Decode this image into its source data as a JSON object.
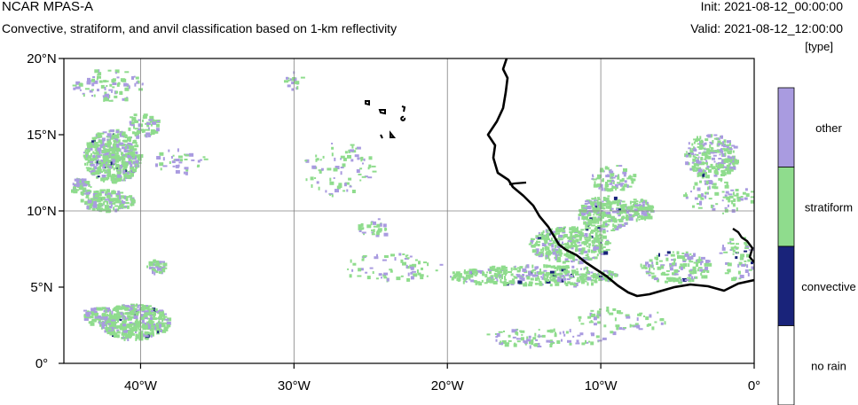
{
  "header": {
    "title": "NCAR MPAS-A",
    "subtitle": "Convective, stratiform, and anvil classification based on 1-km reflectivity",
    "init": "Init: 2021-08-12_00:00:00",
    "valid": "Valid: 2021-08-12_12:00:00",
    "units": "[type]"
  },
  "map": {
    "lon_range": [
      -45,
      0
    ],
    "lat_range": [
      0,
      20
    ],
    "lat_ticks": [
      {
        "value": 20,
        "label": "20°N"
      },
      {
        "value": 15,
        "label": "15°N"
      },
      {
        "value": 10,
        "label": "10°N"
      },
      {
        "value": 5,
        "label": "5°N"
      },
      {
        "value": 0,
        "label": "0°"
      }
    ],
    "lon_ticks": [
      {
        "value": -40,
        "label": "40°W"
      },
      {
        "value": -30,
        "label": "30°W"
      },
      {
        "value": -20,
        "label": "20°W"
      },
      {
        "value": -10,
        "label": "10°W"
      },
      {
        "value": 0,
        "label": "0°"
      }
    ],
    "grid_lines": {
      "lons": [
        -40,
        -30,
        -20,
        -10
      ],
      "lats": [
        10
      ]
    }
  },
  "colorbar": {
    "categories": [
      {
        "label": "other",
        "color": "#a99be0"
      },
      {
        "label": "stratiform",
        "color": "#8fdc8d"
      },
      {
        "label": "convective",
        "color": "#19237a"
      },
      {
        "label": "no rain",
        "color": "#ffffff"
      }
    ]
  },
  "colors": {
    "other": "#a99be0",
    "stratiform": "#8fdc8d",
    "convective": "#19237a",
    "coast": "#000000",
    "grid": "#808080"
  }
}
